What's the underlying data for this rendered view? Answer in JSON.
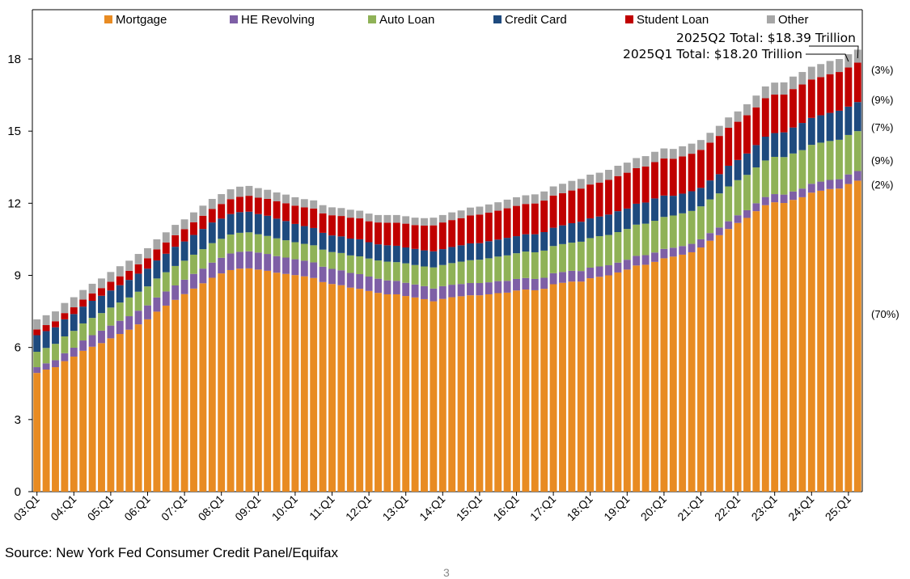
{
  "chart_data": {
    "type": "bar",
    "stacked": true,
    "categories": [
      "03:Q1",
      "03:Q2",
      "03:Q3",
      "03:Q4",
      "04:Q1",
      "04:Q2",
      "04:Q3",
      "04:Q4",
      "05:Q1",
      "05:Q2",
      "05:Q3",
      "05:Q4",
      "06:Q1",
      "06:Q2",
      "06:Q3",
      "06:Q4",
      "07:Q1",
      "07:Q2",
      "07:Q3",
      "07:Q4",
      "08:Q1",
      "08:Q2",
      "08:Q3",
      "08:Q4",
      "09:Q1",
      "09:Q2",
      "09:Q3",
      "09:Q4",
      "10:Q1",
      "10:Q2",
      "10:Q3",
      "10:Q4",
      "11:Q1",
      "11:Q2",
      "11:Q3",
      "11:Q4",
      "12:Q1",
      "12:Q2",
      "12:Q3",
      "12:Q4",
      "13:Q1",
      "13:Q2",
      "13:Q3",
      "13:Q4",
      "14:Q1",
      "14:Q2",
      "14:Q3",
      "14:Q4",
      "15:Q1",
      "15:Q2",
      "15:Q3",
      "15:Q4",
      "16:Q1",
      "16:Q2",
      "16:Q3",
      "16:Q4",
      "17:Q1",
      "17:Q2",
      "17:Q3",
      "17:Q4",
      "18:Q1",
      "18:Q2",
      "18:Q3",
      "18:Q4",
      "19:Q1",
      "19:Q2",
      "19:Q3",
      "19:Q4",
      "20:Q1",
      "20:Q2",
      "20:Q3",
      "20:Q4",
      "21:Q1",
      "21:Q2",
      "21:Q3",
      "21:Q4",
      "22:Q1",
      "22:Q2",
      "22:Q3",
      "22:Q4",
      "23:Q1",
      "23:Q2",
      "23:Q3",
      "23:Q4",
      "24:Q1",
      "24:Q2",
      "24:Q3",
      "24:Q4",
      "25:Q1",
      "25:Q2"
    ],
    "x_tick_labels": [
      "03:Q1",
      "04:Q1",
      "05:Q1",
      "06:Q1",
      "07:Q1",
      "08:Q1",
      "09:Q1",
      "10:Q1",
      "11:Q1",
      "12:Q1",
      "13:Q1",
      "14:Q1",
      "15:Q1",
      "16:Q1",
      "17:Q1",
      "18:Q1",
      "19:Q1",
      "20:Q1",
      "21:Q1",
      "22:Q1",
      "23:Q1",
      "24:Q1",
      "25:Q1"
    ],
    "y_ticks": [
      0,
      3,
      6,
      9,
      12,
      15,
      18
    ],
    "ylim": [
      0,
      19.5
    ],
    "title": "",
    "xlabel": "",
    "ylabel": "",
    "grid": false,
    "legend_position": "top",
    "series": [
      {
        "name": "Mortgage",
        "color": "#E88B22",
        "values": [
          4.94,
          5.08,
          5.18,
          5.43,
          5.62,
          5.86,
          6.03,
          6.18,
          6.38,
          6.56,
          6.74,
          6.96,
          7.17,
          7.49,
          7.74,
          7.98,
          8.22,
          8.45,
          8.67,
          8.9,
          9.08,
          9.22,
          9.28,
          9.29,
          9.24,
          9.19,
          9.11,
          9.06,
          9.01,
          8.96,
          8.89,
          8.72,
          8.64,
          8.59,
          8.49,
          8.44,
          8.35,
          8.27,
          8.21,
          8.21,
          8.14,
          8.08,
          8.01,
          7.92,
          8.02,
          8.09,
          8.13,
          8.17,
          8.17,
          8.21,
          8.26,
          8.28,
          8.37,
          8.41,
          8.38,
          8.44,
          8.63,
          8.69,
          8.74,
          8.74,
          8.88,
          8.94,
          9.0,
          9.12,
          9.24,
          9.41,
          9.44,
          9.56,
          9.71,
          9.78,
          9.86,
          9.96,
          10.16,
          10.44,
          10.67,
          10.93,
          11.18,
          11.39,
          11.67,
          11.92,
          12.04,
          12.01,
          12.14,
          12.25,
          12.44,
          12.52,
          12.59,
          12.61,
          12.8,
          12.94
        ]
      },
      {
        "name": "HE Revolving",
        "color": "#7E5FA6",
        "values": [
          0.24,
          0.26,
          0.29,
          0.33,
          0.37,
          0.43,
          0.48,
          0.52,
          0.53,
          0.55,
          0.56,
          0.57,
          0.58,
          0.59,
          0.59,
          0.6,
          0.6,
          0.61,
          0.61,
          0.63,
          0.65,
          0.69,
          0.7,
          0.71,
          0.71,
          0.7,
          0.69,
          0.68,
          0.66,
          0.65,
          0.65,
          0.64,
          0.63,
          0.62,
          0.61,
          0.61,
          0.6,
          0.59,
          0.58,
          0.56,
          0.55,
          0.54,
          0.54,
          0.53,
          0.53,
          0.52,
          0.51,
          0.51,
          0.51,
          0.5,
          0.5,
          0.49,
          0.48,
          0.48,
          0.47,
          0.46,
          0.46,
          0.45,
          0.45,
          0.44,
          0.44,
          0.43,
          0.42,
          0.41,
          0.41,
          0.4,
          0.4,
          0.39,
          0.39,
          0.37,
          0.36,
          0.35,
          0.34,
          0.32,
          0.32,
          0.32,
          0.32,
          0.32,
          0.33,
          0.34,
          0.34,
          0.35,
          0.35,
          0.36,
          0.37,
          0.38,
          0.38,
          0.39,
          0.4,
          0.4
        ]
      },
      {
        "name": "Auto Loan",
        "color": "#8FB257",
        "values": [
          0.64,
          0.64,
          0.68,
          0.7,
          0.7,
          0.71,
          0.72,
          0.73,
          0.75,
          0.76,
          0.78,
          0.79,
          0.79,
          0.79,
          0.8,
          0.81,
          0.79,
          0.8,
          0.81,
          0.81,
          0.79,
          0.79,
          0.79,
          0.79,
          0.76,
          0.75,
          0.74,
          0.72,
          0.71,
          0.7,
          0.71,
          0.71,
          0.7,
          0.72,
          0.73,
          0.74,
          0.75,
          0.76,
          0.78,
          0.78,
          0.81,
          0.81,
          0.82,
          0.88,
          0.88,
          0.9,
          0.93,
          0.95,
          0.97,
          1.0,
          1.02,
          1.06,
          1.07,
          1.1,
          1.11,
          1.13,
          1.13,
          1.16,
          1.17,
          1.22,
          1.23,
          1.26,
          1.26,
          1.27,
          1.28,
          1.3,
          1.31,
          1.32,
          1.33,
          1.34,
          1.36,
          1.37,
          1.37,
          1.4,
          1.42,
          1.45,
          1.46,
          1.47,
          1.49,
          1.52,
          1.55,
          1.56,
          1.58,
          1.6,
          1.62,
          1.62,
          1.62,
          1.64,
          1.64,
          1.66
        ]
      },
      {
        "name": "Credit Card",
        "color": "#1E4A7E",
        "values": [
          0.69,
          0.7,
          0.69,
          0.71,
          0.7,
          0.7,
          0.71,
          0.72,
          0.71,
          0.72,
          0.73,
          0.75,
          0.74,
          0.75,
          0.77,
          0.8,
          0.8,
          0.82,
          0.84,
          0.86,
          0.84,
          0.85,
          0.86,
          0.86,
          0.84,
          0.84,
          0.82,
          0.8,
          0.76,
          0.74,
          0.72,
          0.7,
          0.69,
          0.69,
          0.7,
          0.71,
          0.68,
          0.67,
          0.68,
          0.68,
          0.66,
          0.67,
          0.67,
          0.67,
          0.66,
          0.67,
          0.68,
          0.7,
          0.69,
          0.71,
          0.71,
          0.73,
          0.71,
          0.72,
          0.75,
          0.77,
          0.76,
          0.78,
          0.81,
          0.83,
          0.82,
          0.82,
          0.85,
          0.87,
          0.85,
          0.87,
          0.88,
          0.93,
          0.89,
          0.82,
          0.82,
          0.82,
          0.77,
          0.79,
          0.8,
          0.86,
          0.84,
          0.89,
          0.93,
          0.99,
          0.99,
          1.03,
          1.08,
          1.13,
          1.12,
          1.14,
          1.17,
          1.21,
          1.18,
          1.21
        ]
      },
      {
        "name": "Student Loan",
        "color": "#C00000",
        "values": [
          0.24,
          0.25,
          0.25,
          0.26,
          0.28,
          0.29,
          0.31,
          0.32,
          0.36,
          0.37,
          0.38,
          0.39,
          0.43,
          0.46,
          0.47,
          0.48,
          0.51,
          0.53,
          0.55,
          0.56,
          0.61,
          0.62,
          0.64,
          0.66,
          0.68,
          0.7,
          0.72,
          0.74,
          0.76,
          0.78,
          0.81,
          0.81,
          0.84,
          0.85,
          0.87,
          0.87,
          0.87,
          0.91,
          0.94,
          0.96,
          0.99,
          0.99,
          1.03,
          1.08,
          1.11,
          1.12,
          1.13,
          1.16,
          1.19,
          1.19,
          1.2,
          1.23,
          1.26,
          1.26,
          1.28,
          1.31,
          1.34,
          1.34,
          1.36,
          1.38,
          1.41,
          1.41,
          1.44,
          1.46,
          1.49,
          1.48,
          1.5,
          1.51,
          1.54,
          1.54,
          1.55,
          1.56,
          1.58,
          1.57,
          1.59,
          1.58,
          1.59,
          1.59,
          1.57,
          1.6,
          1.6,
          1.57,
          1.6,
          1.6,
          1.6,
          1.59,
          1.61,
          1.61,
          1.63,
          1.64
        ]
      },
      {
        "name": "Other",
        "color": "#A6A6A6",
        "values": [
          0.42,
          0.41,
          0.41,
          0.42,
          0.42,
          0.4,
          0.4,
          0.4,
          0.41,
          0.42,
          0.42,
          0.43,
          0.42,
          0.42,
          0.42,
          0.43,
          0.41,
          0.41,
          0.42,
          0.42,
          0.41,
          0.41,
          0.42,
          0.41,
          0.4,
          0.38,
          0.37,
          0.36,
          0.35,
          0.34,
          0.34,
          0.34,
          0.33,
          0.33,
          0.33,
          0.32,
          0.32,
          0.31,
          0.32,
          0.32,
          0.31,
          0.31,
          0.31,
          0.32,
          0.31,
          0.32,
          0.32,
          0.33,
          0.33,
          0.34,
          0.35,
          0.36,
          0.36,
          0.36,
          0.38,
          0.38,
          0.38,
          0.39,
          0.4,
          0.4,
          0.41,
          0.41,
          0.42,
          0.43,
          0.42,
          0.42,
          0.43,
          0.43,
          0.42,
          0.41,
          0.42,
          0.42,
          0.41,
          0.41,
          0.42,
          0.43,
          0.43,
          0.46,
          0.49,
          0.49,
          0.5,
          0.51,
          0.52,
          0.52,
          0.53,
          0.54,
          0.55,
          0.54,
          0.55,
          0.54
        ]
      }
    ],
    "share_labels": [
      "(3%)",
      "(9%)",
      "(7%)",
      "(9%)",
      "(2%)",
      "(70%)"
    ],
    "annotations": [
      {
        "text": "2025Q2 Total: $18.39 Trillion",
        "category": "25:Q2"
      },
      {
        "text": "2025Q1 Total: $18.20 Trillion",
        "category": "25:Q1"
      }
    ]
  },
  "source_note": "Source: New York Fed Consumer Credit Panel/Equifax",
  "page_number": "3"
}
